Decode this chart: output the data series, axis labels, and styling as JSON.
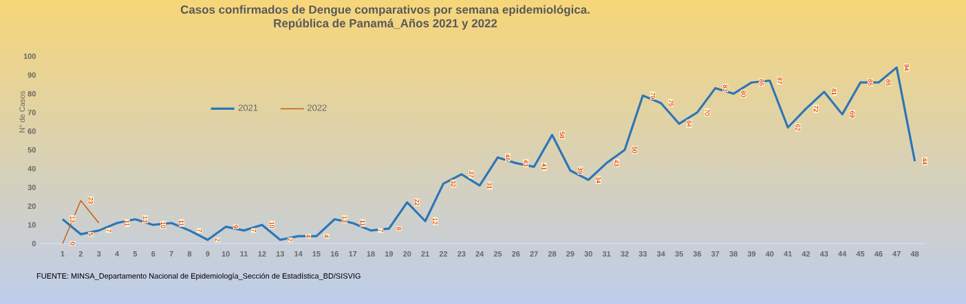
{
  "chart_data": {
    "type": "line",
    "title": "Casos confirmados de Dengue comparativos por semana epidemiológica.\nRepública de Panamá_Años 2021 y 2022",
    "ylabel": "N° de Casos",
    "categories": [
      "1",
      "2",
      "3",
      "4",
      "5",
      "6",
      "7",
      "8",
      "9",
      "10",
      "11",
      "12",
      "13",
      "14",
      "15",
      "16",
      "17",
      "18",
      "19",
      "20",
      "21",
      "22",
      "23",
      "24",
      "25",
      "26",
      "27",
      "28",
      "29",
      "30",
      "31",
      "32",
      "33",
      "34",
      "35",
      "36",
      "37",
      "38",
      "39",
      "40",
      "41",
      "42",
      "43",
      "44",
      "45",
      "46",
      "47",
      "48"
    ],
    "series": [
      {
        "name": "2021",
        "color": "#2e75b6",
        "values": [
          13,
          5,
          7,
          11,
          13,
          10,
          11,
          7,
          2,
          9,
          7,
          10,
          2,
          4,
          4,
          13,
          11,
          7,
          8,
          22,
          12,
          32,
          37,
          31,
          46,
          43,
          41,
          58,
          39,
          34,
          43,
          50,
          79,
          75,
          64,
          70,
          83,
          80,
          86,
          87,
          62,
          72,
          81,
          69,
          86,
          86,
          94,
          44
        ],
        "value_labels": [
          "13",
          "5",
          "7",
          "11",
          "13",
          "10",
          "11",
          "7",
          "2",
          "9",
          "7",
          "10",
          "2",
          "4",
          "4",
          "13",
          "11",
          "7",
          "8",
          "22",
          "12",
          "32",
          "37",
          "31",
          "46",
          "43",
          "41",
          "58",
          "39",
          "34",
          "43",
          "50",
          "79",
          "75",
          "64",
          "70",
          "83",
          "80",
          "86",
          "87",
          "62",
          "72",
          "81",
          "69",
          "86",
          "86",
          "94",
          "44"
        ]
      },
      {
        "name": "2022",
        "color": "#c55a11",
        "values": [
          0,
          23,
          11,
          null,
          null,
          null,
          null,
          null,
          null,
          null,
          null,
          null,
          null,
          null,
          null,
          null,
          null,
          null,
          null,
          null,
          null,
          null,
          null,
          null,
          null,
          null,
          null,
          null,
          null,
          null,
          null,
          null,
          null,
          null,
          null,
          null,
          null,
          null,
          null,
          null,
          null,
          null,
          null,
          null,
          null,
          null,
          null,
          null
        ],
        "value_labels": [
          "0",
          "23",
          null,
          null,
          null,
          null,
          null,
          null,
          null,
          null,
          null,
          null,
          null,
          null,
          null,
          null,
          null,
          null,
          null,
          null,
          null,
          null,
          null,
          null,
          null,
          null,
          null,
          null,
          null,
          null,
          null,
          null,
          null,
          null,
          null,
          null,
          null,
          null,
          null,
          null,
          null,
          null,
          null,
          null,
          null,
          null,
          null,
          null
        ]
      }
    ],
    "ylim": [
      0,
      100
    ],
    "yticks": [
      0,
      10,
      20,
      30,
      40,
      50,
      60,
      70,
      80,
      90,
      100
    ],
    "grid": false,
    "legend": "top left",
    "marker": "none",
    "line_style": "solid",
    "annotations": [
      "FUENTE: MINSA_Departamento Nacional de Epidemiología_Sección de Estadística_BD/SISVIG"
    ]
  }
}
